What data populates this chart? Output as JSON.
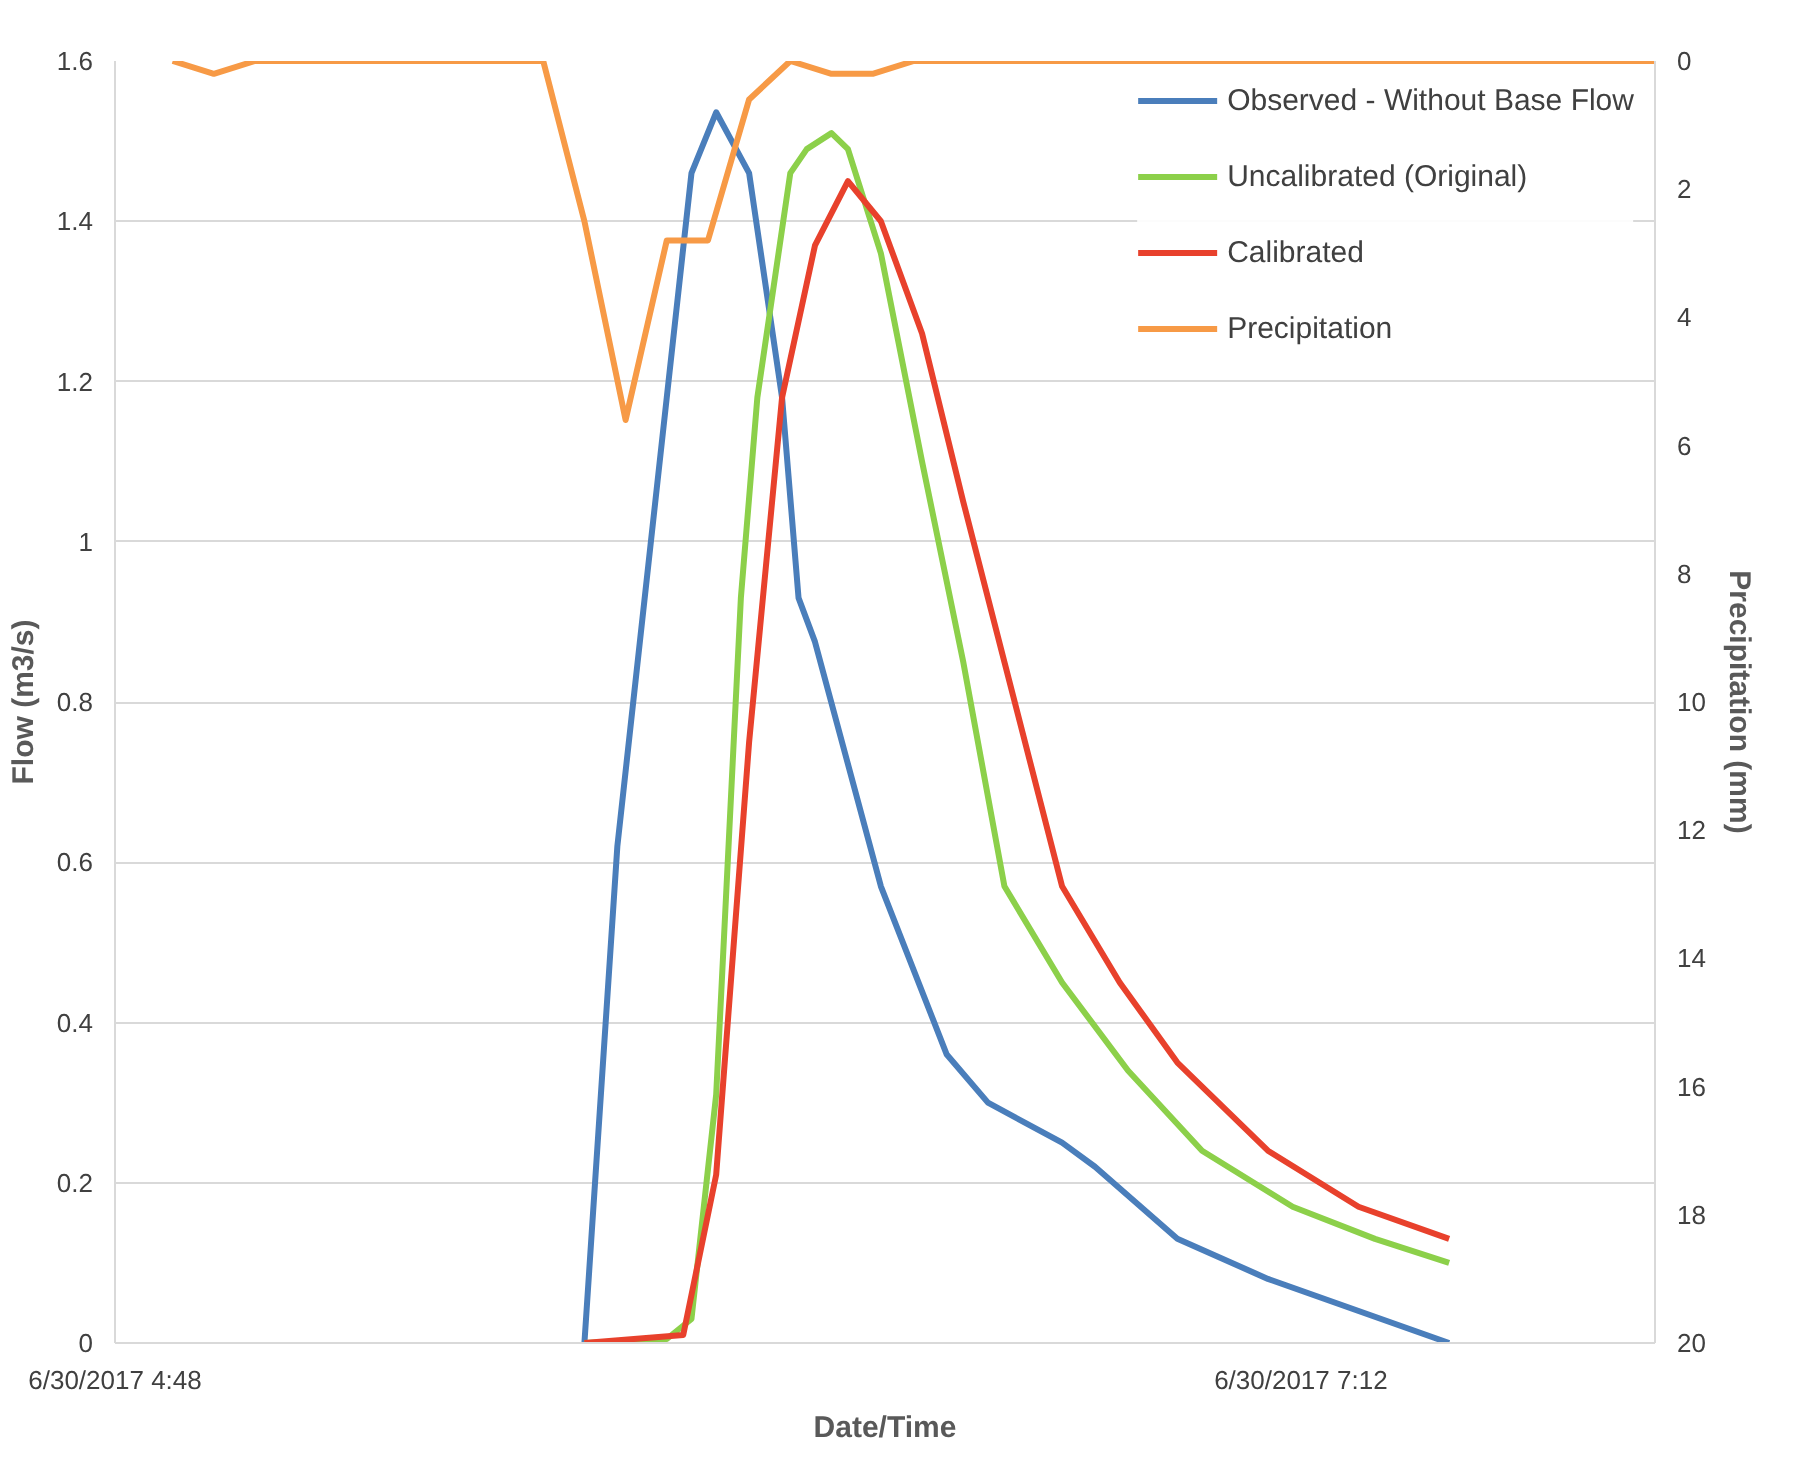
{
  "chart_data": {
    "type": "line",
    "xlabel": "Date/Time",
    "ylabel": "Flow (m3/s)",
    "y2label": "Precipitation (mm)",
    "xlim": [
      "2017-06-30T04:48",
      "2017-06-30T07:55"
    ],
    "xticks": [
      {
        "value": "2017-06-30T04:48",
        "label": "6/30/2017 4:48"
      },
      {
        "value": "2017-06-30T07:12",
        "label": "6/30/2017 7:12"
      }
    ],
    "ylim": [
      0,
      1.6
    ],
    "yticks": [
      0,
      0.2,
      0.4,
      0.6,
      0.8,
      1,
      1.2,
      1.4,
      1.6
    ],
    "y2lim": [
      20,
      0
    ],
    "y2ticks": [
      0,
      2,
      4,
      6,
      8,
      10,
      12,
      14,
      16,
      18,
      20
    ],
    "grid": "y",
    "legend": "top right",
    "marker": "none",
    "line_style": "solid",
    "series": [
      {
        "name": "Observed - Without Base Flow",
        "color": "#4a7ebb",
        "x": [
          "2017-06-30T05:45",
          "2017-06-30T05:49",
          "2017-06-30T05:55",
          "2017-06-30T05:58",
          "2017-06-30T06:01",
          "2017-06-30T06:05",
          "2017-06-30T06:09",
          "2017-06-30T06:11",
          "2017-06-30T06:13",
          "2017-06-30T06:21",
          "2017-06-30T06:29",
          "2017-06-30T06:34",
          "2017-06-30T06:43",
          "2017-06-30T06:47",
          "2017-06-30T06:57",
          "2017-06-30T07:08",
          "2017-06-30T07:30"
        ],
        "values": [
          0,
          0.62,
          1.18,
          1.46,
          1.536,
          1.46,
          1.18,
          0.93,
          0.875,
          0.57,
          0.36,
          0.3,
          0.25,
          0.22,
          0.13,
          0.08,
          0
        ]
      },
      {
        "name": "Uncalibrated (Original)",
        "color": "#8cd04a",
        "x": [
          "2017-06-30T05:45",
          "2017-06-30T05:55",
          "2017-06-30T05:58",
          "2017-06-30T06:01",
          "2017-06-30T06:04",
          "2017-06-30T06:06",
          "2017-06-30T06:10",
          "2017-06-30T06:12",
          "2017-06-30T06:15",
          "2017-06-30T06:17",
          "2017-06-30T06:21",
          "2017-06-30T06:26",
          "2017-06-30T06:31",
          "2017-06-30T06:36",
          "2017-06-30T06:43",
          "2017-06-30T06:51",
          "2017-06-30T07:00",
          "2017-06-30T07:11",
          "2017-06-30T07:21",
          "2017-06-30T07:30"
        ],
        "values": [
          0,
          0.005,
          0.03,
          0.31,
          0.93,
          1.18,
          1.46,
          1.49,
          1.51,
          1.49,
          1.36,
          1.1,
          0.85,
          0.57,
          0.45,
          0.34,
          0.24,
          0.17,
          0.13,
          0.1
        ]
      },
      {
        "name": "Calibrated",
        "color": "#e8412c",
        "x": [
          "2017-06-30T05:45",
          "2017-06-30T05:57",
          "2017-06-30T06:01",
          "2017-06-30T06:05",
          "2017-06-30T06:09",
          "2017-06-30T06:13",
          "2017-06-30T06:17",
          "2017-06-30T06:21",
          "2017-06-30T06:26",
          "2017-06-30T06:31",
          "2017-06-30T06:36",
          "2017-06-30T06:43",
          "2017-06-30T06:50",
          "2017-06-30T06:57",
          "2017-06-30T07:08",
          "2017-06-30T07:19",
          "2017-06-30T07:30"
        ],
        "values": [
          0,
          0.01,
          0.21,
          0.75,
          1.18,
          1.37,
          1.45,
          1.4,
          1.26,
          1.05,
          0.85,
          0.57,
          0.45,
          0.35,
          0.24,
          0.17,
          0.13
        ]
      },
      {
        "name": "Precipitation",
        "color": "#f79a46",
        "axis": "y2",
        "x": [
          "2017-06-30T04:55",
          "2017-06-30T05:00",
          "2017-06-30T05:05",
          "2017-06-30T05:40",
          "2017-06-30T05:45",
          "2017-06-30T05:50",
          "2017-06-30T05:55",
          "2017-06-30T06:00",
          "2017-06-30T06:05",
          "2017-06-30T06:10",
          "2017-06-30T06:15",
          "2017-06-30T06:20",
          "2017-06-30T06:25",
          "2017-06-30T07:55"
        ],
        "values": [
          0,
          0.2,
          0,
          0,
          2.5,
          5.6,
          2.8,
          2.8,
          0.6,
          0,
          0.2,
          0.2,
          0,
          0
        ]
      }
    ]
  }
}
